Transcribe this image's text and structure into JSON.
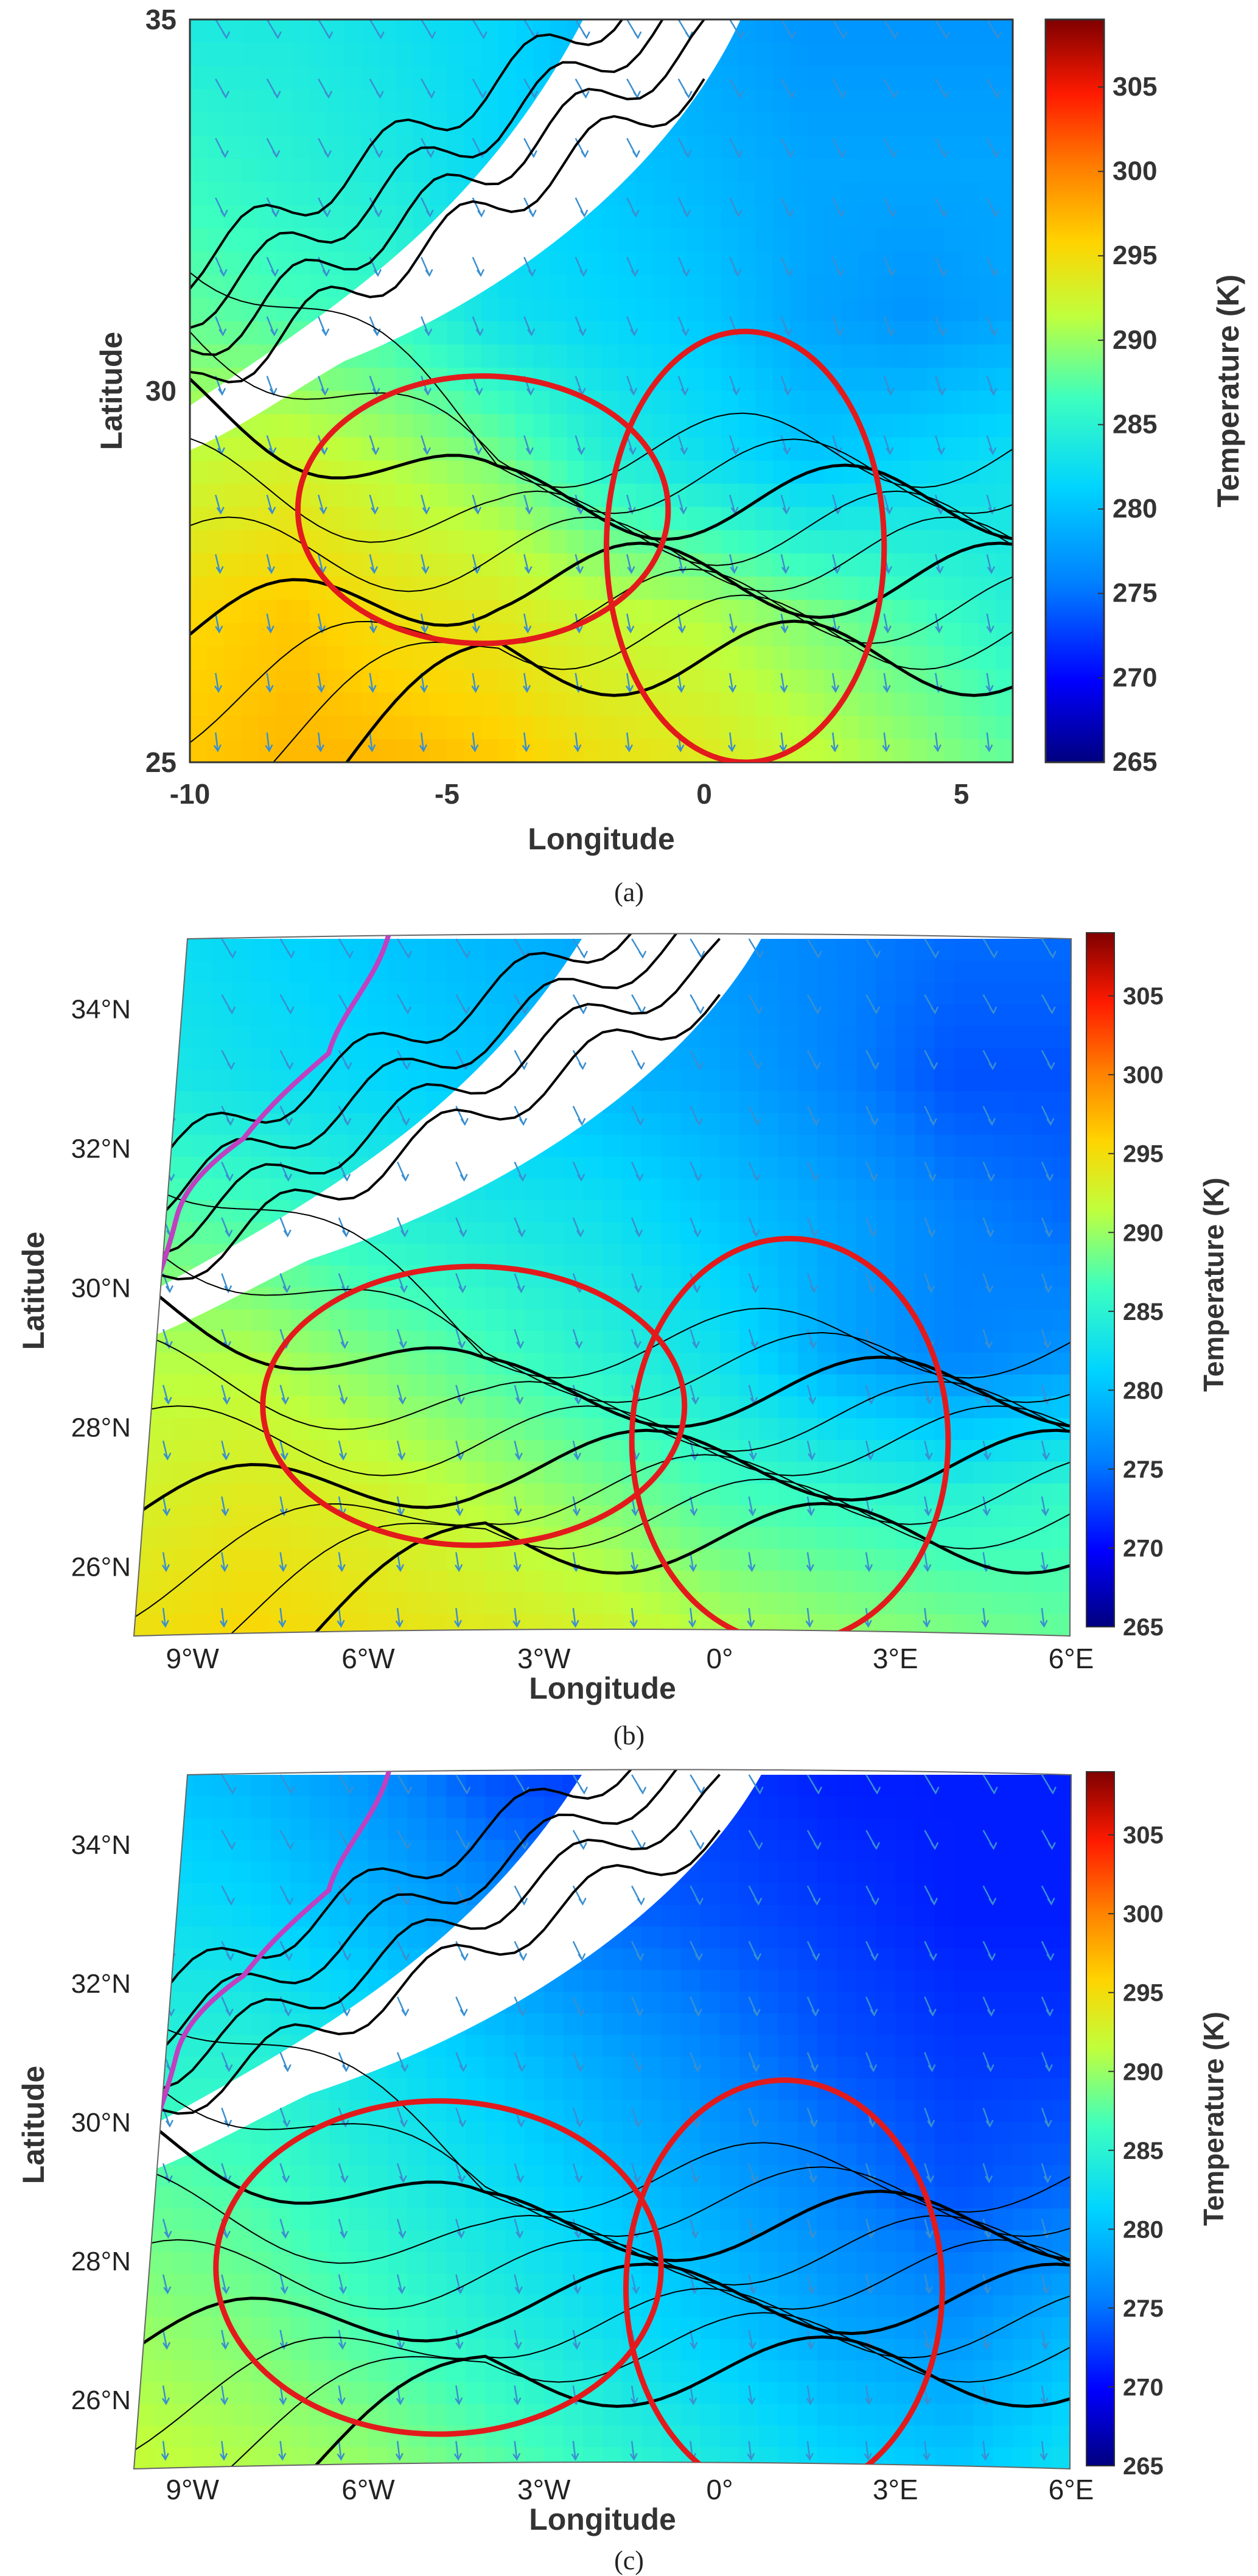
{
  "colors": {
    "colormap": [
      "#00007f",
      "#0000ff",
      "#007fff",
      "#00d4ff",
      "#3dffbf",
      "#bfff3d",
      "#ffd400",
      "#ff7f00",
      "#ff1a00",
      "#7f0000"
    ],
    "ellipse": "#e31a1c",
    "boundary": "#c040c0",
    "contour": "#000000",
    "arrow": "#3a8fd0"
  },
  "panels": [
    {
      "label": "(a)",
      "xlabel": "Longitude",
      "ylabel": "Latitude",
      "xticks": [
        "-10",
        "-5",
        "0",
        "5"
      ],
      "yticks": [
        "25",
        "30",
        "35"
      ],
      "colorbar_label": "Temperature (K)",
      "colorbar_ticks": [
        "265",
        "270",
        "275",
        "280",
        "285",
        "290",
        "295",
        "300",
        "305"
      ]
    },
    {
      "label": "(b)",
      "xlabel": "Longitude",
      "ylabel": "Latitude",
      "xticks": [
        "9°W",
        "6°W",
        "3°W",
        "0°",
        "3°E",
        "6°E"
      ],
      "yticks": [
        "26°N",
        "28°N",
        "30°N",
        "32°N",
        "34°N"
      ],
      "colorbar_label": "Temperature (K)",
      "colorbar_ticks": [
        "265",
        "270",
        "275",
        "280",
        "285",
        "290",
        "295",
        "300",
        "305"
      ]
    },
    {
      "label": "(c)",
      "xlabel": "Longitude",
      "ylabel": "Latitude",
      "xticks": [
        "9°W",
        "6°W",
        "3°W",
        "0°",
        "3°E",
        "6°E"
      ],
      "yticks": [
        "26°N",
        "28°N",
        "30°N",
        "32°N",
        "34°N"
      ],
      "colorbar_label": "Temperature (K)",
      "colorbar_ticks": [
        "265",
        "270",
        "275",
        "280",
        "285",
        "290",
        "295",
        "300",
        "305"
      ]
    }
  ],
  "chart_data": [
    {
      "type": "heatmap",
      "xlabel": "Longitude",
      "ylabel": "Latitude",
      "xlim": [
        -10,
        6
      ],
      "ylim": [
        25,
        35
      ],
      "colorbar": {
        "label": "Temperature (K)",
        "range": [
          265,
          309
        ],
        "ticks": [
          265,
          270,
          275,
          280,
          285,
          290,
          295,
          300,
          305
        ]
      },
      "x": [
        -10,
        -8,
        -6,
        -4,
        -2,
        0,
        2,
        4,
        6
      ],
      "y": [
        35,
        33,
        31,
        29,
        27,
        25
      ],
      "z": [
        [
          282,
          282,
          281,
          280,
          278,
          277,
          276,
          276,
          276
        ],
        [
          284,
          283,
          282,
          280,
          279,
          278,
          277,
          277,
          277
        ],
        [
          286,
          285,
          284,
          281,
          280,
          279,
          277,
          276,
          277
        ],
        [
          290,
          291,
          289,
          287,
          283,
          281,
          279,
          280,
          281
        ],
        [
          294,
          295,
          293,
          292,
          290,
          289,
          287,
          285,
          283
        ],
        [
          295,
          296,
          296,
          295,
          293,
          292,
          290,
          288,
          286
        ]
      ],
      "highlight_ellipses": [
        {
          "center_lon": -4.3,
          "center_lat": 28.4,
          "semi_axis_lon": 3.6,
          "semi_axis_lat": 1.8
        },
        {
          "center_lon": 0.8,
          "center_lat": 27.9,
          "semi_axis_lon": 2.7,
          "semi_axis_lat": 2.9
        }
      ]
    },
    {
      "type": "heatmap",
      "xlabel": "Longitude",
      "ylabel": "Latitude",
      "xlim": [
        -10,
        6
      ],
      "ylim": [
        25,
        35
      ],
      "colorbar": {
        "label": "Temperature (K)",
        "range": [
          265,
          309
        ],
        "ticks": [
          265,
          270,
          275,
          280,
          285,
          290,
          295,
          300,
          305
        ]
      },
      "x": [
        -10,
        -8,
        -6,
        -4,
        -2,
        0,
        2,
        4,
        6
      ],
      "y": [
        35,
        33,
        31,
        29,
        27,
        25
      ],
      "z": [
        [
          281,
          280,
          279,
          278,
          277,
          276,
          275,
          274,
          274
        ],
        [
          282,
          281,
          280,
          279,
          278,
          277,
          275,
          273,
          273
        ],
        [
          286,
          285,
          283,
          282,
          281,
          279,
          277,
          275,
          274
        ],
        [
          289,
          289,
          287,
          285,
          283,
          281,
          277,
          275,
          276
        ],
        [
          291,
          292,
          291,
          289,
          287,
          285,
          284,
          283,
          284
        ],
        [
          293,
          294,
          293,
          292,
          291,
          289,
          288,
          287,
          286
        ]
      ],
      "highlight_ellipses": [
        {
          "center_lon": -4.2,
          "center_lat": 28.3,
          "semi_axis_lon": 3.6,
          "semi_axis_lat": 2.0
        },
        {
          "center_lon": 1.2,
          "center_lat": 27.8,
          "semi_axis_lon": 2.7,
          "semi_axis_lat": 2.9
        }
      ]
    },
    {
      "type": "heatmap",
      "xlabel": "Longitude",
      "ylabel": "Latitude",
      "xlim": [
        -10,
        6
      ],
      "ylim": [
        25,
        35
      ],
      "colorbar": {
        "label": "Temperature (K)",
        "range": [
          265,
          309
        ],
        "ticks": [
          265,
          270,
          275,
          280,
          285,
          290,
          295,
          300,
          305
        ]
      },
      "x": [
        -10,
        -8,
        -6,
        -4,
        -2,
        0,
        2,
        4,
        6
      ],
      "y": [
        35,
        33,
        31,
        29,
        27,
        25
      ],
      "z": [
        [
          279,
          278,
          276,
          273,
          272,
          272,
          271,
          271,
          271
        ],
        [
          281,
          280,
          278,
          276,
          274,
          273,
          272,
          271,
          271
        ],
        [
          283,
          283,
          281,
          279,
          277,
          275,
          273,
          272,
          272
        ],
        [
          286,
          285,
          283,
          281,
          279,
          277,
          275,
          273,
          274
        ],
        [
          288,
          287,
          285,
          283,
          281,
          279,
          277,
          276,
          278
        ],
        [
          290,
          289,
          288,
          286,
          284,
          282,
          280,
          279,
          281
        ]
      ],
      "highlight_ellipses": [
        {
          "center_lon": -4.8,
          "center_lat": 27.9,
          "semi_axis_lon": 3.8,
          "semi_axis_lat": 2.4
        },
        {
          "center_lon": 1.1,
          "center_lat": 27.6,
          "semi_axis_lon": 2.7,
          "semi_axis_lat": 3.0
        }
      ]
    }
  ]
}
